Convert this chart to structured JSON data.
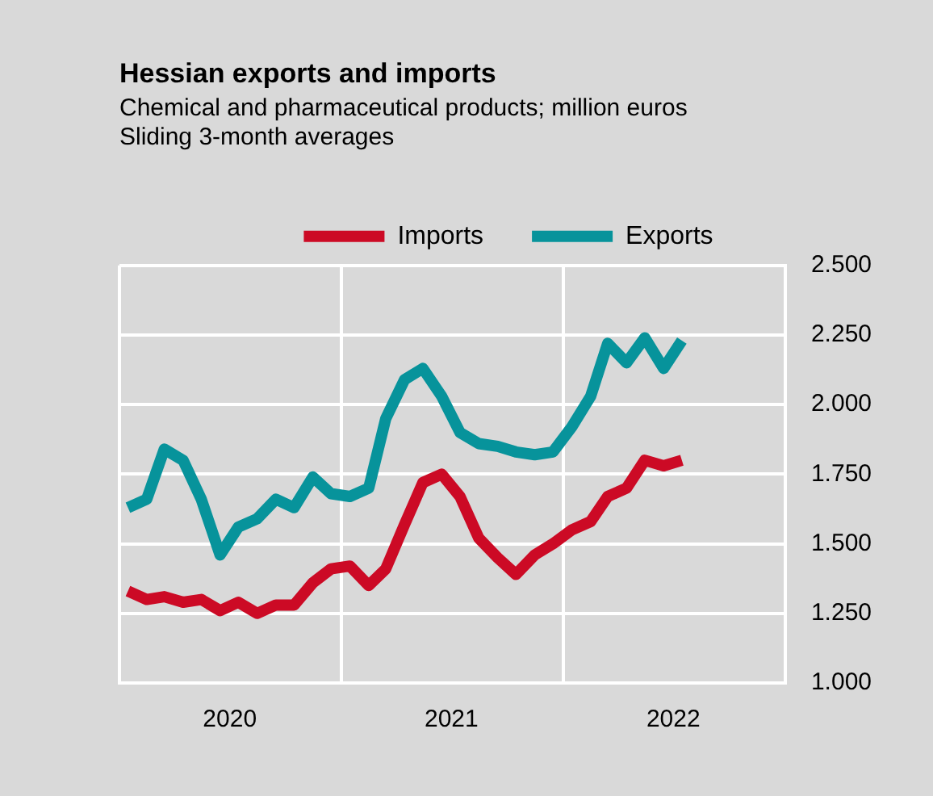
{
  "chart_data": {
    "type": "line",
    "title": "Hessian exports and imports",
    "subtitle": "Chemical and pharmaceutical products; million euros\nSliding 3-month averages",
    "x": [
      "2020-01-15",
      "2020-02-15",
      "2020-03-15",
      "2020-04-15",
      "2020-05-15",
      "2020-06-15",
      "2020-07-15",
      "2020-08-15",
      "2020-09-15",
      "2020-10-15",
      "2020-11-15",
      "2020-12-15",
      "2021-01-15",
      "2021-02-15",
      "2021-03-15",
      "2021-04-15",
      "2021-05-15",
      "2021-06-15",
      "2021-07-15",
      "2021-08-15",
      "2021-09-15",
      "2021-10-15",
      "2021-11-15",
      "2021-12-15",
      "2022-01-15",
      "2022-02-15",
      "2022-03-15",
      "2022-04-15",
      "2022-05-15",
      "2022-06-15",
      "2022-07-15"
    ],
    "series": [
      {
        "name": "Imports",
        "color": "#cc0a25",
        "values": [
          1330,
          1300,
          1310,
          1290,
          1300,
          1260,
          1290,
          1250,
          1280,
          1280,
          1360,
          1410,
          1420,
          1350,
          1410,
          1570,
          1720,
          1750,
          1670,
          1520,
          1450,
          1390,
          1460,
          1500,
          1550,
          1580,
          1670,
          1700,
          1800,
          1780,
          1800
        ]
      },
      {
        "name": "Exports",
        "color": "#07939b",
        "values": [
          1630,
          1660,
          1840,
          1800,
          1660,
          1460,
          1560,
          1590,
          1660,
          1630,
          1740,
          1680,
          1670,
          1700,
          1950,
          2090,
          2130,
          2030,
          1900,
          1860,
          1850,
          1830,
          1820,
          1830,
          1920,
          2030,
          2220,
          2150,
          2240,
          2130,
          2230
        ]
      }
    ],
    "xlim": [
      "2020-01-01",
      "2023-01-01"
    ],
    "xticks": [
      {
        "value": "2020-01-01",
        "label": null
      },
      {
        "value": "2020-07-01",
        "label": "2020"
      },
      {
        "value": "2021-01-01",
        "label": null
      },
      {
        "value": "2021-07-01",
        "label": "2021"
      },
      {
        "value": "2022-01-01",
        "label": null
      },
      {
        "value": "2022-07-01",
        "label": "2022"
      },
      {
        "value": "2023-01-01",
        "label": null
      }
    ],
    "ylim": [
      1000,
      2500
    ],
    "yticks": [
      {
        "value": 1000,
        "label": "1.000"
      },
      {
        "value": 1250,
        "label": "1.250"
      },
      {
        "value": 1500,
        "label": "1.500"
      },
      {
        "value": 1750,
        "label": "1.750"
      },
      {
        "value": 2000,
        "label": "2.000"
      },
      {
        "value": 2250,
        "label": "2.250"
      },
      {
        "value": 2500,
        "label": "2.500"
      }
    ],
    "grid": true,
    "legend": "top",
    "marker": "none",
    "line_style": "solid"
  }
}
